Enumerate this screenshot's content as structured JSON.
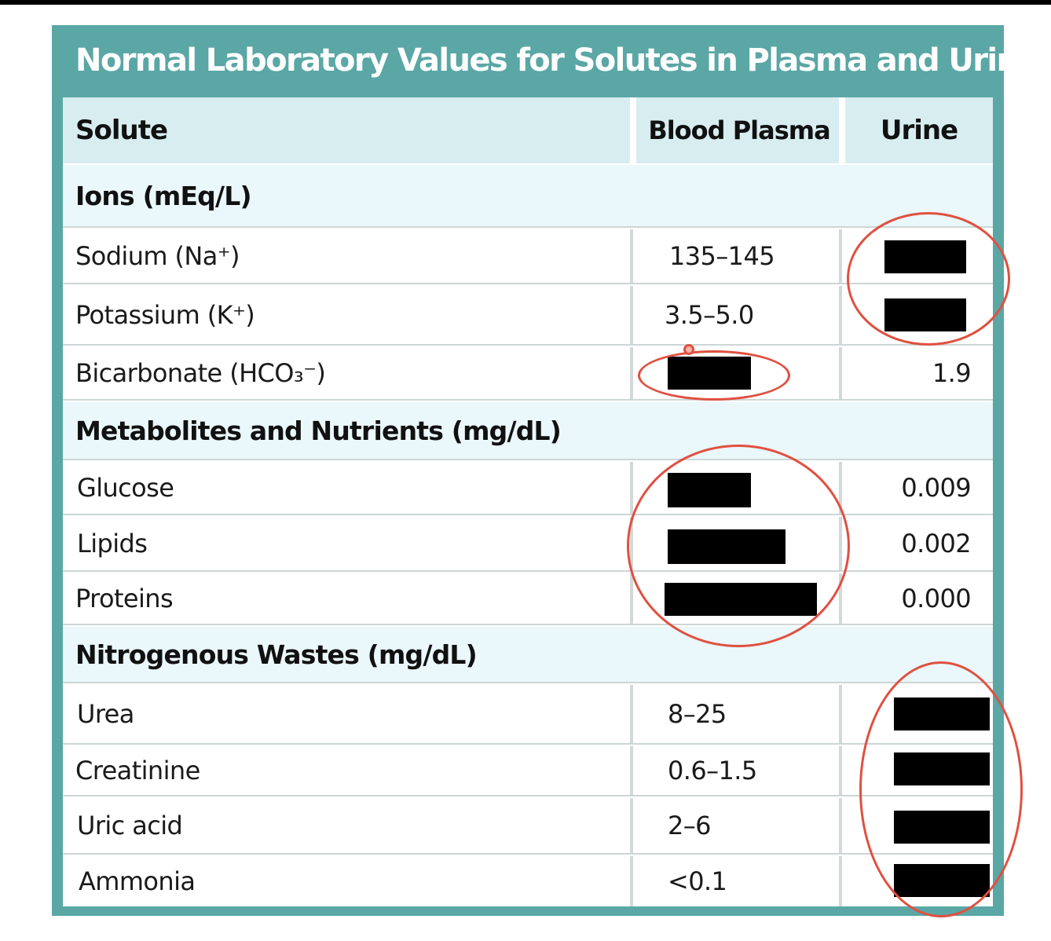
{
  "title": "Normal Laboratory Values for Solutes in Plasma and Urine",
  "columns": [
    "Solute",
    "Blood Plasma",
    "Urine"
  ],
  "sections": [
    {
      "label": "Ions (mEq/L)",
      "rows": [
        {
          "solute": "Sodium (Na⁺)",
          "plasma": "135–145",
          "urine": ""
        },
        {
          "solute": "Potassium (K⁺)",
          "plasma": "3.5–5.0",
          "urine": ""
        },
        {
          "solute": "Bicarbonate (HCO₃⁻)",
          "plasma": "",
          "urine": "1.9"
        }
      ]
    },
    {
      "label": "Metabolites and Nutrients (mg/dL)",
      "rows": [
        {
          "solute": "Glucose",
          "plasma": "",
          "urine": "0.009"
        },
        {
          "solute": "Lipids",
          "plasma": "",
          "urine": "0.002"
        },
        {
          "solute": "Proteins",
          "plasma": "",
          "urine": "0.000"
        }
      ]
    },
    {
      "label": "Nitrogenous Wastes (mg/dL)",
      "rows": [
        {
          "solute": "Urea",
          "plasma": "8–25",
          "urine": ""
        },
        {
          "solute": "Creatinine",
          "plasma": "0.6–1.5",
          "urine": ""
        },
        {
          "solute": "Uric acid",
          "plasma": "2–6",
          "urine": ""
        },
        {
          "solute": "Ammonia",
          "plasma": "<0.1",
          "urine": ""
        }
      ]
    }
  ],
  "colors": {
    "frame": "#5aa7a5",
    "header_bg": "#d8edf0",
    "section_bg": "#eaf7fb",
    "annotation": "#e05040",
    "redaction": "#000000"
  }
}
